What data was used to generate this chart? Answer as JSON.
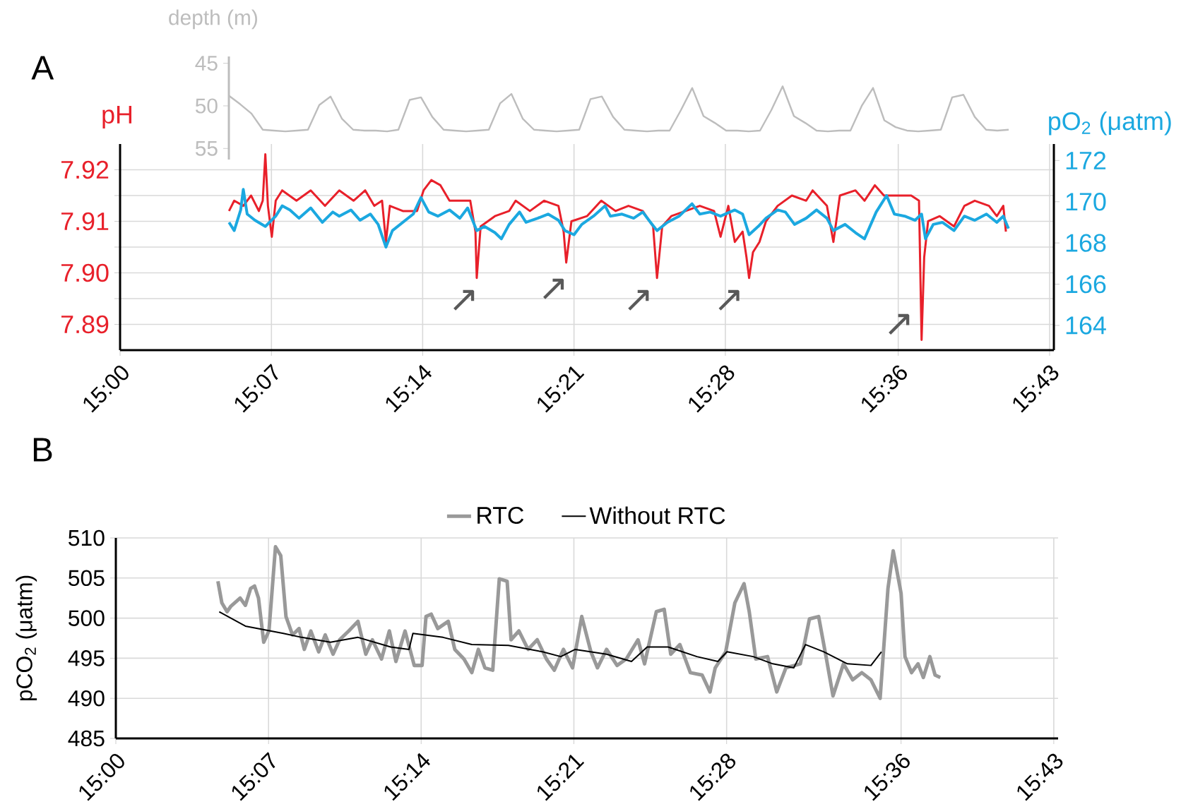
{
  "chart_data": [
    {
      "type": "line",
      "ylabel": "depth (m)",
      "categories": [
        null,
        null,
        null,
        null,
        null,
        null,
        null,
        null,
        null,
        null,
        null,
        null,
        null,
        null,
        null,
        null,
        null,
        null,
        null,
        null,
        null,
        null,
        null,
        null,
        null,
        null,
        null,
        null,
        null,
        null,
        null,
        null,
        null,
        null,
        null,
        null,
        null,
        null,
        null,
        null,
        null,
        null,
        null,
        null,
        null,
        null,
        null,
        null,
        null,
        null,
        null,
        null,
        null,
        null,
        null,
        null,
        null,
        null,
        null,
        null,
        null,
        null,
        null,
        null,
        null,
        null,
        null,
        null,
        null,
        null
      ],
      "ylim": [
        56.3,
        44.2
      ],
      "yticks": [
        45,
        50,
        55
      ],
      "tick_labels": "y",
      "series": [
        {
          "color": "#bdbdbd",
          "values": [
            48.8,
            49.8,
            50.9,
            52.8,
            52.9,
            53.0,
            52.9,
            52.8,
            49.9,
            48.9,
            51.5,
            52.8,
            52.9,
            52.9,
            53.0,
            52.8,
            49.3,
            49.0,
            51.3,
            52.8,
            52.9,
            53.0,
            52.9,
            52.8,
            49.7,
            48.6,
            51.5,
            52.8,
            52.9,
            53.0,
            52.9,
            52.8,
            49.2,
            48.9,
            51.3,
            52.8,
            52.9,
            53.0,
            52.9,
            52.9,
            50.5,
            47.9,
            51.2,
            52.0,
            52.9,
            52.9,
            53.0,
            52.9,
            50.5,
            47.7,
            51.2,
            52.0,
            52.9,
            53.0,
            52.9,
            52.9,
            50.0,
            47.9,
            51.7,
            52.5,
            52.9,
            53.0,
            52.9,
            52.8,
            49.0,
            48.7,
            51.3,
            52.8,
            52.9,
            52.8
          ]
        }
      ]
    },
    {
      "type": "line",
      "ylabel": "pH",
      "y2label": "pO$_{2}$ (μatm)",
      "grid": true,
      "xlim": [
        15,
        15.72
      ],
      "xticks": [
        {
          "value": 15,
          "label": "15:00"
        },
        {
          "value": 15.1167,
          "label": "15:07"
        },
        {
          "value": 15.2333,
          "label": "15:14"
        },
        {
          "value": 15.35,
          "label": "15:21"
        },
        {
          "value": 15.4667,
          "label": "15:28"
        },
        {
          "value": 15.6,
          "label": "15:36"
        },
        {
          "value": 15.7167,
          "label": "15:43"
        }
      ],
      "ylim": [
        7.885,
        7.925
      ],
      "yticks": [
        7.89,
        {
          "value": 7.895,
          "label": null
        },
        {
          "value": 7.9,
          "label": "7.90"
        },
        {
          "value": 7.905,
          "label": null
        },
        7.91,
        {
          "value": 7.915,
          "label": null
        },
        7.92
      ],
      "y2lim": [
        162.8,
        172.8
      ],
      "y2ticks": [
        164,
        166,
        168,
        170,
        172
      ],
      "annotations": [
        "A",
        "↗",
        "↗",
        "↗",
        "↗",
        "↗"
      ],
      "series": [
        {
          "color": "#e8202a",
          "x": [
            15.084,
            15.088,
            15.095,
            15.101,
            15.107,
            15.11,
            15.112,
            15.114,
            15.117,
            15.12,
            15.125,
            15.136,
            15.147,
            15.158,
            15.169,
            15.18,
            15.189,
            15.196,
            15.202,
            15.205,
            15.208,
            15.218,
            15.229,
            15.234,
            15.24,
            15.247,
            15.254,
            15.262,
            15.27,
            15.274,
            15.275,
            15.278,
            15.289,
            15.3,
            15.305,
            15.316,
            15.327,
            15.338,
            15.342,
            15.344,
            15.348,
            15.36,
            15.371,
            15.382,
            15.392,
            15.403,
            15.411,
            15.414,
            15.418,
            15.425,
            15.436,
            15.447,
            15.458,
            15.463,
            15.469,
            15.474,
            15.48,
            15.483,
            15.485,
            15.488,
            15.493,
            15.498,
            15.507,
            15.518,
            15.529,
            15.534,
            15.545,
            15.55,
            15.555,
            15.567,
            15.574,
            15.582,
            15.589,
            15.6,
            15.61,
            15.616,
            15.618,
            15.62,
            15.623,
            15.632,
            15.643,
            15.651,
            15.659,
            15.67,
            15.676,
            15.681,
            15.683
          ],
          "values": [
            7.912,
            7.914,
            7.913,
            7.915,
            7.912,
            7.914,
            7.923,
            7.913,
            7.907,
            7.914,
            7.916,
            7.914,
            7.916,
            7.913,
            7.916,
            7.914,
            7.916,
            7.913,
            7.914,
            7.906,
            7.913,
            7.912,
            7.912,
            7.916,
            7.918,
            7.917,
            7.914,
            7.914,
            7.914,
            7.908,
            7.899,
            7.909,
            7.911,
            7.912,
            7.914,
            7.912,
            7.914,
            7.913,
            7.908,
            7.902,
            7.91,
            7.911,
            7.914,
            7.912,
            7.913,
            7.912,
            7.909,
            7.899,
            7.909,
            7.911,
            7.912,
            7.913,
            7.912,
            7.907,
            7.913,
            7.906,
            7.908,
            7.903,
            7.899,
            7.904,
            7.906,
            7.91,
            7.913,
            7.915,
            7.914,
            7.916,
            7.913,
            7.906,
            7.915,
            7.916,
            7.914,
            7.917,
            7.915,
            7.915,
            7.915,
            7.914,
            7.887,
            7.903,
            7.91,
            7.911,
            7.909,
            7.913,
            7.914,
            7.913,
            7.911,
            7.913,
            7.908
          ]
        },
        {
          "color": "#1ba8e0",
          "axis": "y2",
          "x": [
            15.084,
            15.088,
            15.093,
            15.095,
            15.098,
            15.104,
            15.112,
            15.12,
            15.125,
            15.131,
            15.138,
            15.147,
            15.156,
            15.164,
            15.169,
            15.178,
            15.185,
            15.193,
            15.199,
            15.205,
            15.21,
            15.218,
            15.226,
            15.232,
            15.238,
            15.245,
            15.254,
            15.262,
            15.268,
            15.275,
            15.281,
            15.289,
            15.294,
            15.3,
            15.308,
            15.313,
            15.322,
            15.33,
            15.338,
            15.343,
            15.35,
            15.356,
            15.365,
            15.374,
            15.378,
            15.387,
            15.396,
            15.403,
            15.409,
            15.414,
            15.422,
            15.431,
            15.441,
            15.447,
            15.455,
            15.463,
            15.474,
            15.48,
            15.485,
            15.492,
            15.498,
            15.507,
            15.513,
            15.52,
            15.529,
            15.537,
            15.545,
            15.55,
            15.559,
            15.567,
            15.574,
            15.583,
            15.591,
            15.597,
            15.605,
            15.613,
            15.618,
            15.621,
            15.627,
            15.634,
            15.643,
            15.651,
            15.659,
            15.668,
            15.676,
            15.681,
            15.685
          ],
          "values": [
            169.0,
            168.6,
            169.6,
            170.6,
            169.4,
            169.1,
            168.8,
            169.3,
            169.8,
            169.6,
            169.2,
            169.7,
            169.0,
            169.5,
            169.3,
            169.6,
            169.1,
            169.4,
            168.9,
            167.8,
            168.6,
            169.0,
            169.4,
            170.2,
            169.5,
            169.3,
            169.6,
            169.2,
            169.7,
            168.6,
            168.8,
            168.5,
            168.2,
            168.9,
            169.5,
            169.0,
            169.2,
            169.4,
            169.1,
            168.6,
            168.4,
            168.9,
            169.3,
            169.8,
            169.3,
            169.4,
            169.2,
            169.5,
            169.0,
            168.6,
            169.0,
            169.3,
            169.9,
            169.4,
            169.5,
            169.3,
            169.6,
            169.4,
            168.4,
            168.8,
            169.2,
            169.6,
            169.5,
            168.9,
            169.2,
            169.6,
            169.2,
            168.6,
            168.9,
            168.5,
            168.2,
            169.5,
            170.3,
            169.4,
            169.3,
            169.1,
            169.4,
            168.2,
            168.9,
            169.0,
            168.6,
            169.3,
            169.1,
            169.4,
            169.0,
            169.3,
            168.7
          ]
        }
      ]
    },
    {
      "type": "line",
      "ylabel": "pCO$_{2}$ (μatm)",
      "grid": true,
      "legend": "top",
      "xlim": [
        15,
        15.72
      ],
      "xticks": [
        {
          "value": 15,
          "label": "15:00"
        },
        {
          "value": 15.1167,
          "label": "15:07"
        },
        {
          "value": 15.2333,
          "label": "15:14"
        },
        {
          "value": 15.35,
          "label": "15:21"
        },
        {
          "value": 15.4667,
          "label": "15:28"
        },
        {
          "value": 15.6,
          "label": "15:36"
        },
        {
          "value": 15.7167,
          "label": "15:43"
        }
      ],
      "ylim": [
        485,
        510
      ],
      "yticks": [
        485,
        490,
        495,
        500,
        505,
        510
      ],
      "annotations": [
        "B"
      ],
      "series": [
        {
          "name": "RTC",
          "color": "#999999",
          "x": [
            15.078,
            15.081,
            15.085,
            15.088,
            15.095,
            15.099,
            15.103,
            15.106,
            15.109,
            15.113,
            15.117,
            15.122,
            15.126,
            15.13,
            15.135,
            15.14,
            15.144,
            15.149,
            15.155,
            15.16,
            15.166,
            15.171,
            15.178,
            15.185,
            15.191,
            15.196,
            15.203,
            15.209,
            15.214,
            15.221,
            15.228,
            15.234,
            15.237,
            15.241,
            15.246,
            15.254,
            15.259,
            15.266,
            15.272,
            15.277,
            15.282,
            15.288,
            15.293,
            15.299,
            15.302,
            15.308,
            15.315,
            15.322,
            15.329,
            15.335,
            15.342,
            15.349,
            15.356,
            15.363,
            15.368,
            15.375,
            15.383,
            15.39,
            15.399,
            15.404,
            15.413,
            15.419,
            15.424,
            15.431,
            15.439,
            15.448,
            15.454,
            15.458,
            15.466,
            15.473,
            15.48,
            15.484,
            15.489,
            15.498,
            15.505,
            15.512,
            15.523,
            15.53,
            15.537,
            15.543,
            15.548,
            15.556,
            15.563,
            15.57,
            15.577,
            15.584,
            15.59,
            15.594,
            15.6,
            15.603,
            15.608,
            15.613,
            15.617,
            15.622,
            15.626,
            15.63
          ],
          "values": [
            504.6,
            501.9,
            500.8,
            501.5,
            502.5,
            501.6,
            503.7,
            504.0,
            502.5,
            497.0,
            498.4,
            508.9,
            507.8,
            500.2,
            497.9,
            498.7,
            496.1,
            498.4,
            495.8,
            497.9,
            495.5,
            497.3,
            498.4,
            499.6,
            495.5,
            497.3,
            494.9,
            498.4,
            494.6,
            498.4,
            494.1,
            494.1,
            500.2,
            500.5,
            498.7,
            499.6,
            496.1,
            494.9,
            493.2,
            496.1,
            493.8,
            493.5,
            504.9,
            504.6,
            497.3,
            498.4,
            496.1,
            497.3,
            494.9,
            493.5,
            496.1,
            493.8,
            500.2,
            495.8,
            493.8,
            496.1,
            494.1,
            494.9,
            497.3,
            494.3,
            500.8,
            501.1,
            495.5,
            496.7,
            493.2,
            492.9,
            490.8,
            493.8,
            495.8,
            501.9,
            504.3,
            500.8,
            494.9,
            495.2,
            490.8,
            493.8,
            494.3,
            499.9,
            500.2,
            494.9,
            490.3,
            494.3,
            492.3,
            493.2,
            492.3,
            490.0,
            503.7,
            508.4,
            503.1,
            495.2,
            493.2,
            494.3,
            492.6,
            495.2,
            492.9,
            492.6
          ]
        },
        {
          "name": "Without RTC",
          "color": "#000000",
          "x": [
            15.079,
            15.099,
            15.128,
            15.142,
            15.164,
            15.185,
            15.21,
            15.224,
            15.227,
            15.25,
            15.272,
            15.3,
            15.326,
            15.34,
            15.351,
            15.363,
            15.375,
            15.394,
            15.406,
            15.422,
            15.444,
            15.46,
            15.467,
            15.487,
            15.502,
            15.518,
            15.527,
            15.541,
            15.559,
            15.577,
            15.585
          ],
          "values": [
            500.8,
            499.0,
            498.1,
            497.6,
            497.0,
            497.6,
            496.4,
            496.1,
            498.1,
            497.6,
            496.7,
            496.6,
            495.8,
            495.2,
            496.1,
            495.8,
            495.5,
            494.6,
            496.4,
            496.4,
            495.2,
            494.6,
            495.8,
            495.2,
            494.3,
            493.8,
            496.7,
            495.8,
            494.3,
            494.1,
            495.8
          ]
        }
      ]
    }
  ]
}
